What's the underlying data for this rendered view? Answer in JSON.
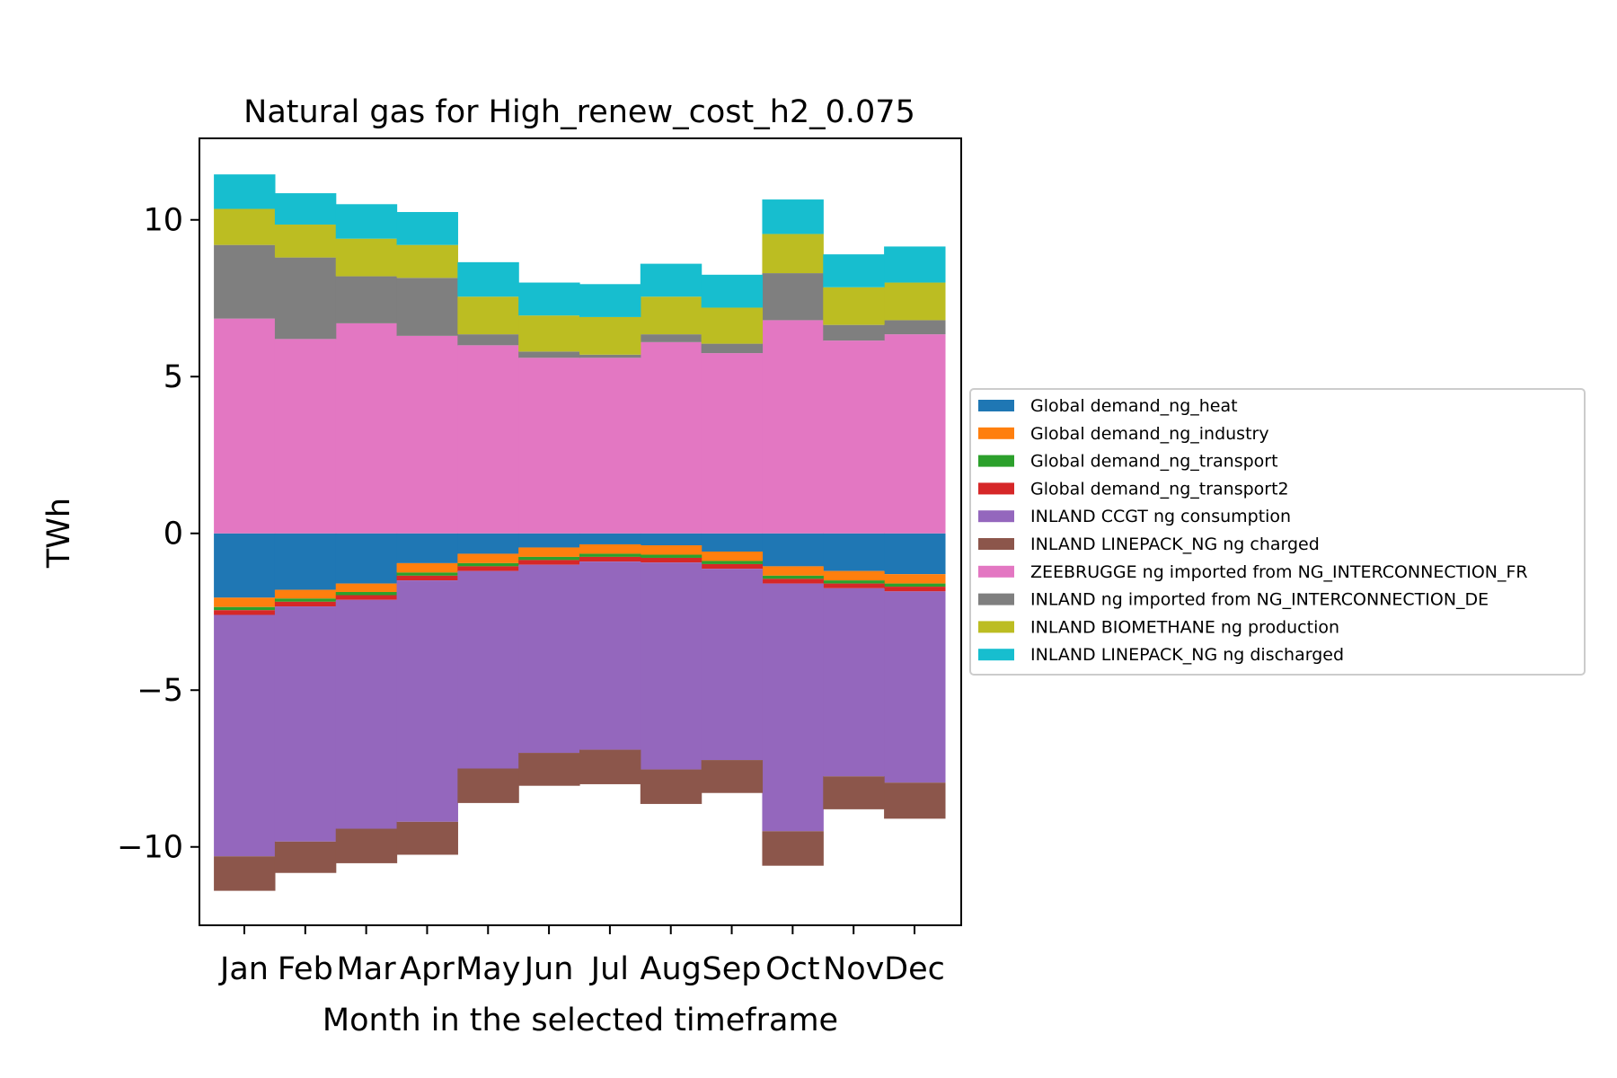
{
  "chart_data": {
    "type": "area",
    "title": "Natural gas for High_renew_cost_h2_0.075",
    "xlabel": "Month in the selected timeframe",
    "ylabel": "TWh",
    "categories": [
      "Jan",
      "Feb",
      "Mar",
      "Apr",
      "May",
      "Jun",
      "Jul",
      "Aug",
      "Sep",
      "Oct",
      "Nov",
      "Dec"
    ],
    "ylim": [
      -12.5,
      12.6
    ],
    "yticks": [
      -10,
      -5,
      0,
      5,
      10
    ],
    "ytick_labels": [
      "−10",
      "−5",
      "0",
      "5",
      "10"
    ],
    "grid": false,
    "legend_placement": "center-right outside",
    "series": [
      {
        "name": "Global demand_ng_heat",
        "color": "#1f77b4",
        "values": [
          -2.05,
          -1.8,
          -1.6,
          -0.95,
          -0.65,
          -0.45,
          -0.35,
          -0.38,
          -0.58,
          -1.05,
          -1.2,
          -1.3
        ]
      },
      {
        "name": "Global demand_ng_industry",
        "color": "#ff7f0e",
        "values": [
          -0.3,
          -0.28,
          -0.27,
          -0.3,
          -0.3,
          -0.3,
          -0.3,
          -0.3,
          -0.3,
          -0.3,
          -0.3,
          -0.3
        ]
      },
      {
        "name": "Global demand_ng_transport",
        "color": "#2ca02c",
        "values": [
          -0.1,
          -0.1,
          -0.1,
          -0.1,
          -0.1,
          -0.1,
          -0.1,
          -0.1,
          -0.1,
          -0.1,
          -0.1,
          -0.1
        ]
      },
      {
        "name": "Global demand_ng_transport2",
        "color": "#d62728",
        "values": [
          -0.15,
          -0.15,
          -0.15,
          -0.15,
          -0.15,
          -0.15,
          -0.15,
          -0.15,
          -0.15,
          -0.15,
          -0.15,
          -0.15
        ]
      },
      {
        "name": "INLAND CCGT ng consumption",
        "color": "#9467bd",
        "values": [
          -7.7,
          -7.5,
          -7.3,
          -7.7,
          -6.3,
          -6.0,
          -6.0,
          -6.6,
          -6.1,
          -7.9,
          -6.0,
          -6.1
        ]
      },
      {
        "name": "INLAND LINEPACK_NG ng charged",
        "color": "#8c564b",
        "values": [
          -1.1,
          -1.0,
          -1.1,
          -1.05,
          -1.1,
          -1.05,
          -1.1,
          -1.1,
          -1.05,
          -1.1,
          -1.05,
          -1.15
        ]
      },
      {
        "name": "ZEEBRUGGE ng imported from NG_INTERCONNECTION_FR",
        "color": "#e377c2",
        "values": [
          6.85,
          6.2,
          6.7,
          6.3,
          6.0,
          5.6,
          5.6,
          6.1,
          5.75,
          6.8,
          6.15,
          6.35
        ]
      },
      {
        "name": "INLAND ng imported from NG_INTERCONNECTION_DE",
        "color": "#7f7f7f",
        "values": [
          2.35,
          2.6,
          1.5,
          1.85,
          0.35,
          0.2,
          0.1,
          0.25,
          0.3,
          1.5,
          0.5,
          0.45
        ]
      },
      {
        "name": "INLAND BIOMETHANE ng production",
        "color": "#bcbd22",
        "values": [
          1.15,
          1.05,
          1.2,
          1.05,
          1.2,
          1.15,
          1.2,
          1.2,
          1.15,
          1.25,
          1.2,
          1.2
        ]
      },
      {
        "name": "INLAND LINEPACK_NG ng discharged",
        "color": "#17becf",
        "values": [
          1.1,
          1.0,
          1.1,
          1.05,
          1.1,
          1.05,
          1.05,
          1.05,
          1.05,
          1.1,
          1.05,
          1.15
        ]
      }
    ]
  }
}
